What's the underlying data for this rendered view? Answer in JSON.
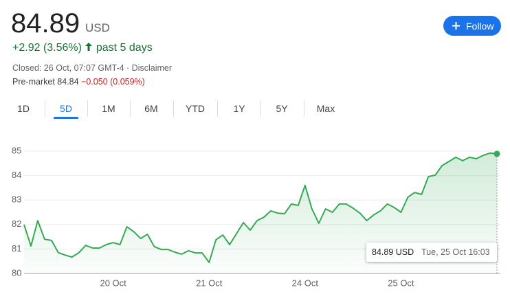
{
  "header": {
    "price": "84.89",
    "currency": "USD",
    "follow": "Follow",
    "change": "+2.92 (3.56%)",
    "period": "past 5 days",
    "closed": "Closed: 26 Oct, 07:07 GMT-4 · Disclaimer",
    "premarket_label": "Pre-market 84.84",
    "premarket_change": "−0.050 (0.059%)"
  },
  "tabs": {
    "items": [
      "1D",
      "5D",
      "1M",
      "6M",
      "YTD",
      "1Y",
      "5Y",
      "Max"
    ],
    "selected": "5D"
  },
  "chart_data": {
    "type": "area",
    "color": "#34a853",
    "categories": [
      null,
      null,
      null,
      null,
      null,
      null,
      null,
      null,
      null,
      null,
      null,
      null,
      null,
      "20 Oct",
      null,
      null,
      null,
      null,
      null,
      null,
      null,
      null,
      null,
      null,
      null,
      null,
      null,
      "21 Oct",
      null,
      null,
      null,
      null,
      null,
      null,
      null,
      null,
      null,
      null,
      null,
      null,
      null,
      "24 Oct",
      null,
      null,
      null,
      null,
      null,
      null,
      null,
      null,
      null,
      null,
      null,
      null,
      null,
      "25 Oct",
      null,
      null,
      null,
      null,
      null,
      null,
      null,
      null,
      null,
      null,
      null,
      null,
      null,
      null
    ],
    "values": [
      82.0,
      81.12,
      82.16,
      81.4,
      81.35,
      80.85,
      80.75,
      80.67,
      80.85,
      81.15,
      81.04,
      81.04,
      81.18,
      81.26,
      81.18,
      81.91,
      81.71,
      81.43,
      81.6,
      81.1,
      80.98,
      80.98,
      80.87,
      80.79,
      80.93,
      80.84,
      80.84,
      80.45,
      81.38,
      81.57,
      81.18,
      81.63,
      82.08,
      81.77,
      82.16,
      82.3,
      82.56,
      82.47,
      82.44,
      82.84,
      82.78,
      83.6,
      82.64,
      82.05,
      82.64,
      82.5,
      82.84,
      82.84,
      82.67,
      82.47,
      82.16,
      82.39,
      82.56,
      82.84,
      82.7,
      82.5,
      83.12,
      83.31,
      83.23,
      83.96,
      84.02,
      84.41,
      84.58,
      84.75,
      84.61,
      84.75,
      84.69,
      84.83,
      84.92,
      84.89
    ],
    "ylim": [
      80,
      85
    ],
    "yticks": [
      80,
      81,
      82,
      83,
      84,
      85
    ],
    "grid": true,
    "tooltip": {
      "value": "84.89 USD",
      "time": "Tue, 25 Oct 16:03"
    }
  }
}
